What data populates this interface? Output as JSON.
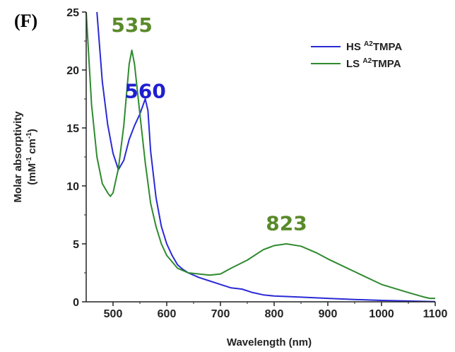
{
  "panel_label": "(F)",
  "chart_data": {
    "type": "line",
    "xlabel": "Wavelength (nm)",
    "ylabel_line1": "Molar absorptivity",
    "ylabel_line2_parts": [
      "(mM",
      "-1",
      " cm",
      "-1",
      ")"
    ],
    "xlim": [
      450,
      1100
    ],
    "ylim": [
      0,
      25
    ],
    "x_ticks": [
      500,
      600,
      700,
      800,
      900,
      1000,
      1100
    ],
    "y_ticks": [
      0,
      5,
      10,
      15,
      20,
      25
    ],
    "series": [
      {
        "name_prefix": "HS ",
        "name_sup": "A2",
        "name_suffix": "TMPA",
        "color": "#2a2ad6",
        "x": [
          470,
          480,
          490,
          500,
          510,
          520,
          530,
          540,
          550,
          560,
          565,
          570,
          580,
          590,
          600,
          610,
          620,
          630,
          640,
          660,
          680,
          700,
          720,
          740,
          760,
          780,
          800,
          850,
          900,
          950,
          1000,
          1050,
          1100
        ],
        "y": [
          25,
          19,
          15.3,
          12.8,
          11.4,
          12.2,
          14,
          15.2,
          16.2,
          17.5,
          16.5,
          13,
          9,
          6.5,
          5,
          4,
          3.2,
          2.8,
          2.5,
          2.1,
          1.8,
          1.5,
          1.2,
          1.1,
          0.8,
          0.6,
          0.5,
          0.4,
          0.3,
          0.2,
          0.12,
          0.07,
          0.02
        ]
      },
      {
        "name_prefix": "LS ",
        "name_sup": "A2",
        "name_suffix": "TMPA",
        "color": "#2f8a2f",
        "x": [
          450,
          460,
          470,
          480,
          490,
          495,
          500,
          510,
          520,
          530,
          535,
          540,
          550,
          560,
          570,
          580,
          590,
          600,
          620,
          640,
          660,
          680,
          700,
          720,
          750,
          780,
          800,
          823,
          850,
          880,
          900,
          950,
          1000,
          1050,
          1080,
          1090,
          1100
        ],
        "y": [
          25,
          17,
          12.5,
          10.2,
          9.4,
          9.1,
          9.4,
          11.5,
          15.2,
          20.5,
          21.7,
          20.5,
          16.2,
          12,
          8.5,
          6.5,
          5,
          4,
          2.9,
          2.5,
          2.4,
          2.3,
          2.4,
          2.9,
          3.6,
          4.5,
          4.85,
          5.0,
          4.8,
          4.2,
          3.7,
          2.6,
          1.5,
          0.8,
          0.4,
          0.3,
          0.3
        ]
      }
    ],
    "annotations": [
      {
        "text": "535",
        "x": 535,
        "y": 23.3,
        "color": "#5a8a2a"
      },
      {
        "text": "560",
        "x": 560,
        "y": 17.6,
        "color": "#1f1fd0"
      },
      {
        "text": "823",
        "x": 823,
        "y": 6.2,
        "color": "#5a8a2a"
      }
    ]
  }
}
